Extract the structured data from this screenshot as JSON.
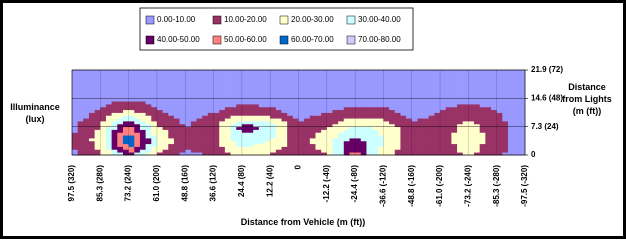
{
  "chart_data": {
    "type": "contour",
    "y_title": "Illuminance (lux)",
    "y2_title": "Distance from Lights (m (ft))",
    "x_title": "Distance from Vehicle (m (ft))",
    "categories": [
      "97.5 (320)",
      "85.3 (280)",
      "73.2 (240)",
      "61.0 (200)",
      "48.8 (160)",
      "36.6 (120)",
      "24.4 (80)",
      "12.2 (40)",
      "0",
      "-12.2 (-40)",
      "-24.4 (-80)",
      "-36.6 (-120)",
      "-48.8 (-160)",
      "-61.0 (-200)",
      "-73.2 (-240)",
      "-85.3 (-280)",
      "-97.5 (-320)"
    ],
    "y": [
      0,
      3.65,
      7.3,
      10.95,
      14.6,
      18.25,
      21.9
    ],
    "z": [
      [
        8,
        18,
        45,
        20,
        8,
        10,
        25,
        20,
        10,
        20,
        55,
        25,
        10,
        12,
        22,
        12,
        3
      ],
      [
        10,
        25,
        72,
        30,
        12,
        18,
        35,
        30,
        15,
        28,
        45,
        30,
        15,
        16,
        26,
        16,
        4
      ],
      [
        8,
        20,
        55,
        22,
        10,
        15,
        45,
        38,
        12,
        18,
        32,
        28,
        12,
        14,
        24,
        14,
        4
      ],
      [
        4,
        12,
        25,
        12,
        5,
        10,
        15,
        14,
        6,
        10,
        15,
        14,
        6,
        11,
        16,
        11,
        3
      ],
      [
        2,
        5,
        8,
        5,
        2,
        3,
        6,
        5,
        2,
        3,
        5,
        5,
        2,
        4,
        8,
        4,
        2
      ],
      [
        1,
        2,
        3,
        2,
        1,
        1,
        2,
        2,
        1,
        1,
        2,
        2,
        1,
        1,
        2,
        1,
        1
      ],
      [
        1,
        1,
        2,
        1,
        1,
        1,
        1,
        1,
        1,
        1,
        1,
        1,
        1,
        1,
        1,
        1,
        1
      ]
    ],
    "bands": [
      {
        "name": "0.00-10.00",
        "range": [
          0,
          10
        ],
        "color": "#9999ff"
      },
      {
        "name": "10.00-20.00",
        "range": [
          10,
          20
        ],
        "color": "#993366"
      },
      {
        "name": "20.00-30.00",
        "range": [
          20,
          30
        ],
        "color": "#ffffcc"
      },
      {
        "name": "30.00-40.00",
        "range": [
          30,
          40
        ],
        "color": "#ccffff"
      },
      {
        "name": "40.00-50.00",
        "range": [
          40,
          50
        ],
        "color": "#660066"
      },
      {
        "name": "50.00-60.00",
        "range": [
          50,
          60
        ],
        "color": "#ff8080"
      },
      {
        "name": "60.00-70.00",
        "range": [
          60,
          70
        ],
        "color": "#0066cc"
      },
      {
        "name": "70.00-80.00",
        "range": [
          70,
          80
        ],
        "color": "#ccccff"
      }
    ],
    "ylim": [
      0,
      21.9
    ],
    "yticks": [
      0,
      {
        "value": 7.3,
        "label": "7.3 (24)"
      },
      {
        "value": 14.6,
        "label": "14.6 (48)"
      },
      {
        "value": 21.9,
        "label": "21.9 (72)"
      }
    ],
    "grid": true
  }
}
